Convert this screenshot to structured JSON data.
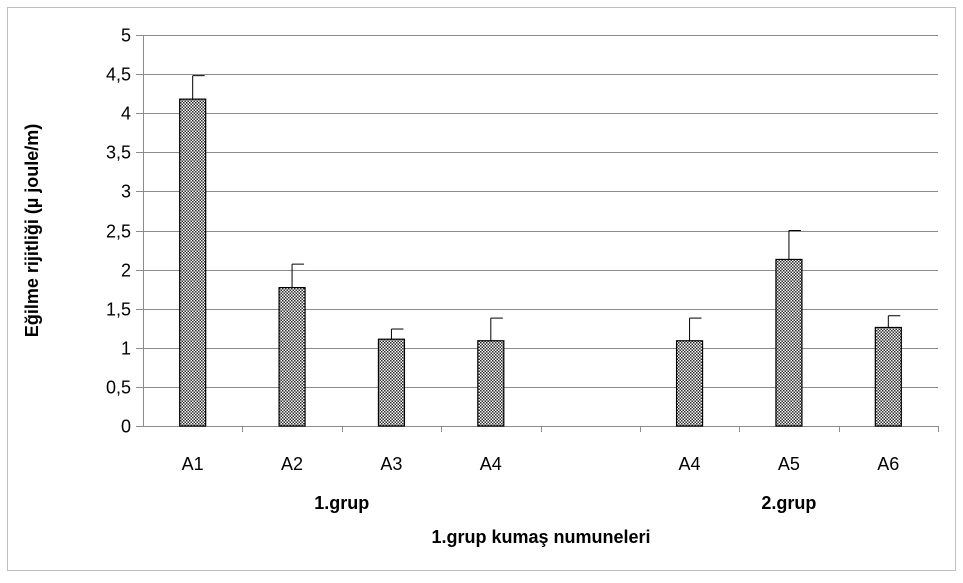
{
  "chart_data": {
    "type": "bar",
    "xlabel": "1.grup kumaş numuneleri",
    "ylabel": "Eğilme rijitliği (µ joule/m)",
    "ylim": [
      0,
      5
    ],
    "yticks": [
      "0",
      "0,5",
      "1",
      "1,5",
      "2",
      "2,5",
      "3",
      "3,5",
      "4",
      "4,5",
      "5"
    ],
    "grid": true,
    "legend": "none",
    "groups": [
      {
        "label": "1.grup",
        "categories": [
          "A1",
          "A2",
          "A3",
          "A4"
        ],
        "values": [
          4.18,
          1.77,
          1.11,
          1.09
        ],
        "errors": [
          0.3,
          0.3,
          0.13,
          0.29
        ]
      },
      {
        "label": "2.grup",
        "categories": [
          "A4",
          "A5",
          "A6"
        ],
        "values": [
          1.09,
          2.13,
          1.26
        ],
        "errors": [
          0.29,
          0.37,
          0.15
        ]
      }
    ],
    "colors": {
      "bar_fill": "#8c8c8c",
      "bar_stroke": "#000000",
      "grid": "#8c8c8c",
      "axis": "#8c8c8c"
    }
  }
}
